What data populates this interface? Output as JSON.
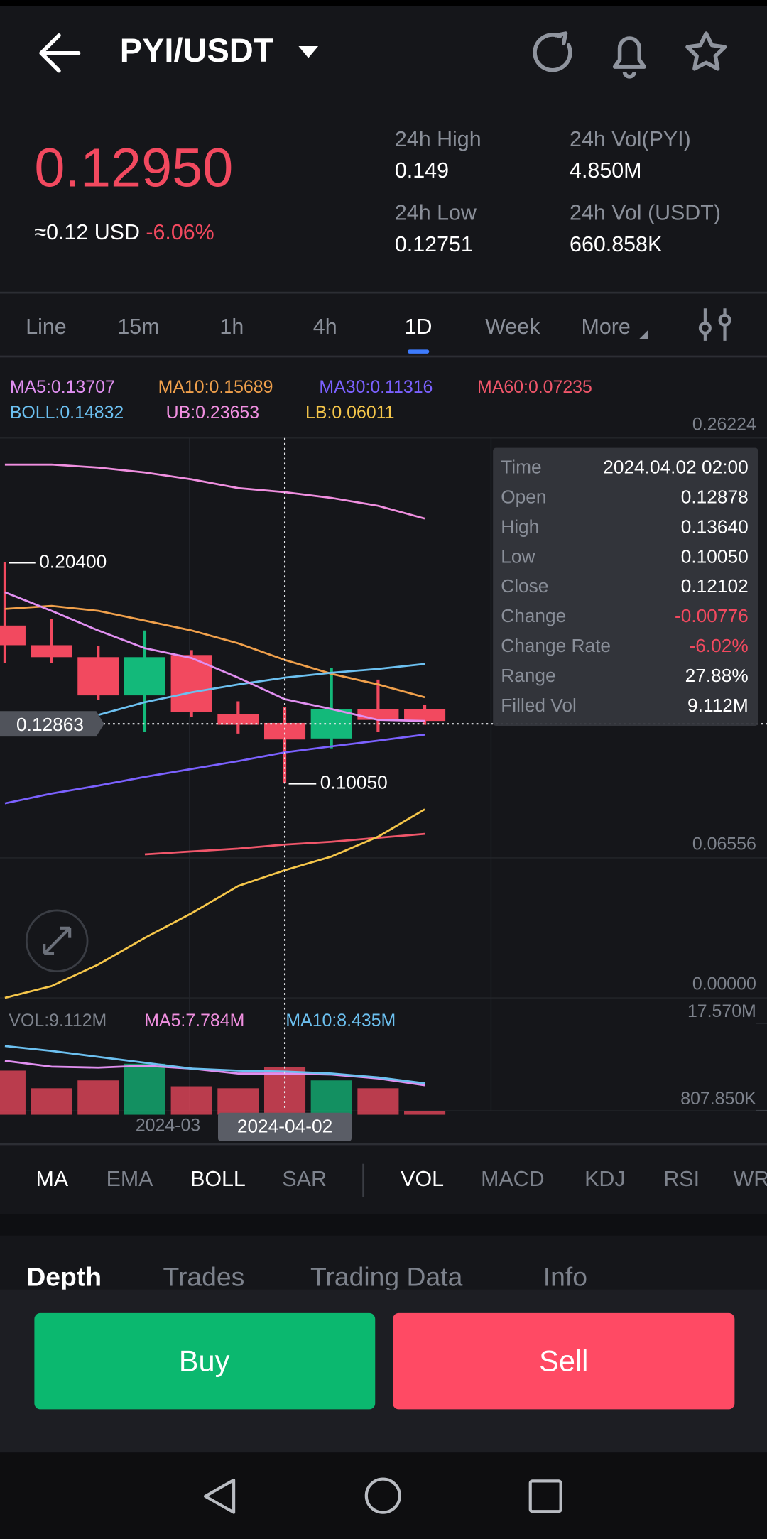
{
  "header": {
    "pair": "PYI/USDT"
  },
  "ticker": {
    "price": "0.12950",
    "usd": "≈0.12 USD",
    "change": "-6.06%",
    "stats": [
      {
        "label": "24h High",
        "value": "0.149"
      },
      {
        "label": "24h Vol(PYI)",
        "value": "4.850M"
      },
      {
        "label": "24h Low",
        "value": "0.12751"
      },
      {
        "label": "24h Vol (USDT)",
        "value": "660.858K"
      }
    ]
  },
  "intervals": {
    "items": [
      "Line",
      "15m",
      "1h",
      "4h",
      "1D",
      "Week",
      "More"
    ],
    "active": 4
  },
  "chart": {
    "legend": [
      {
        "text": "MA5:0.13707",
        "color": "#e08ff0"
      },
      {
        "text": "MA10:0.15689",
        "color": "#f0a04b"
      },
      {
        "text": "MA30:0.11316",
        "color": "#7b61ff"
      },
      {
        "text": "MA60:0.07235",
        "color": "#f0566a"
      },
      {
        "text": "BOLL:0.14832",
        "color": "#6cc0f0"
      },
      {
        "text": "UB:0.23653",
        "color": "#f08fe0"
      },
      {
        "text": "LB:0.06011",
        "color": "#f5c64a"
      }
    ],
    "ylim": [
      0,
      0.26224
    ],
    "yticks": [
      0.26224,
      0.06556,
      {
        "value": 0,
        "label": "0.00000"
      }
    ],
    "up_color": "#13b97a",
    "down_color": "#f2495f",
    "candles": [
      {
        "open": 0.1744,
        "high": 0.204,
        "low": 0.157,
        "close": 0.1652
      },
      {
        "open": 0.1652,
        "high": 0.1776,
        "low": 0.1569,
        "close": 0.1596
      },
      {
        "open": 0.1596,
        "high": 0.1647,
        "low": 0.1394,
        "close": 0.1417
      },
      {
        "open": 0.1417,
        "high": 0.1721,
        "low": 0.1247,
        "close": 0.1596
      },
      {
        "open": 0.1606,
        "high": 0.1629,
        "low": 0.1316,
        "close": 0.1339
      },
      {
        "open": 0.133,
        "high": 0.1389,
        "low": 0.1238,
        "close": 0.1279
      },
      {
        "open": 0.12878,
        "high": 0.1364,
        "low": 0.1005,
        "close": 0.12102
      },
      {
        "open": 0.1215,
        "high": 0.1546,
        "low": 0.1169,
        "close": 0.1353
      },
      {
        "open": 0.1353,
        "high": 0.1491,
        "low": 0.1247,
        "close": 0.1302
      },
      {
        "open": 0.1353,
        "high": 0.1371,
        "low": 0.1279,
        "close": 0.1297
      }
    ],
    "lines": [
      {
        "color": "#f08fe0",
        "values": [
          0.2498,
          0.2498,
          0.2484,
          0.2461,
          0.2429,
          0.2388,
          0.2369,
          0.2342,
          0.2305,
          0.2245
        ]
      },
      {
        "color": "#f0a04b",
        "values": [
          0.1822,
          0.1836,
          0.1813,
          0.1767,
          0.1721,
          0.1661,
          0.1583,
          0.1518,
          0.1468,
          0.1408
        ]
      },
      {
        "color": "#6cc0f0",
        "values": [
          null,
          null,
          0.1325,
          0.1385,
          0.1431,
          0.1468,
          0.15,
          0.1523,
          0.1541,
          0.1564
        ]
      },
      {
        "color": "#e08ff0",
        "values": [
          0.19,
          0.1813,
          0.1721,
          0.1638,
          0.1592,
          0.15,
          0.1399,
          0.1353,
          0.1302,
          0.1297
        ]
      },
      {
        "color": "#7b61ff",
        "values": [
          0.0911,
          0.0957,
          0.0994,
          0.1035,
          0.1072,
          0.1109,
          0.115,
          0.1178,
          0.1205,
          0.1233
        ]
      },
      {
        "color": "#f0566a",
        "values": [
          null,
          null,
          null,
          0.0672,
          0.0686,
          0.0699,
          0.0718,
          0.0731,
          0.075,
          0.0768
        ]
      },
      {
        "color": "#f5c64a",
        "values": [
          0,
          0.0055,
          0.0156,
          0.0281,
          0.0396,
          0.0524,
          0.0598,
          0.0662,
          0.0755,
          0.0883
        ]
      }
    ],
    "high_marker": "0.20400",
    "low_marker": "0.10050",
    "crosshair_price": "0.12863",
    "x_label": "2024-03",
    "crosshair_date": "2024-04-02",
    "tooltip": [
      {
        "label": "Time",
        "value": "2024.04.02 02:00"
      },
      {
        "label": "Open",
        "value": "0.12878"
      },
      {
        "label": "High",
        "value": "0.13640"
      },
      {
        "label": "Low",
        "value": "0.10050"
      },
      {
        "label": "Close",
        "value": "0.12102"
      },
      {
        "label": "Change",
        "value": "-0.00776",
        "color": "#f2495f"
      },
      {
        "label": "Change Rate",
        "value": "-6.02%",
        "color": "#f2495f"
      },
      {
        "label": "Range",
        "value": "27.88%"
      },
      {
        "label": "Filled Vol",
        "value": "9.112M"
      }
    ]
  },
  "volume": {
    "legend": [
      {
        "text": "VOL:9.112M",
        "color": "#7d828c"
      },
      {
        "text": "MA5:7.784M",
        "color": "#f08fe0"
      },
      {
        "text": "MA10:8.435M",
        "color": "#6cc0f0"
      }
    ],
    "ylim": [
      0,
      19.8
    ],
    "yticks": [
      {
        "value": 17.57,
        "label": "17.570M"
      },
      {
        "value": 0.80785,
        "label": "807.850K"
      }
    ],
    "values": [
      8.47,
      5.08,
      6.59,
      9.79,
      5.46,
      5.08,
      9.112,
      6.59,
      5.08,
      0.75
    ],
    "lines": [
      {
        "color": "#e08ff0",
        "values": [
          10.36,
          9.23,
          9.04,
          9.42,
          8.85,
          7.91,
          7.91,
          7.72,
          6.97,
          5.65
        ]
      },
      {
        "color": "#6cc0f0",
        "values": [
          13.18,
          12.24,
          11.11,
          9.98,
          8.85,
          8.47,
          8.29,
          7.91,
          7.16,
          6.03
        ]
      }
    ]
  },
  "indicator_tabs": {
    "items": [
      "MA",
      "EMA",
      "BOLL",
      "SAR",
      "VOL",
      "MACD",
      "KDJ",
      "RSI",
      "WR"
    ],
    "active": [
      0,
      2,
      4
    ]
  },
  "bottom_tabs": {
    "items": [
      "Depth",
      "Trades",
      "Trading Data",
      "Info"
    ],
    "active": 0
  },
  "actions": {
    "buy": "Buy",
    "sell": "Sell"
  }
}
